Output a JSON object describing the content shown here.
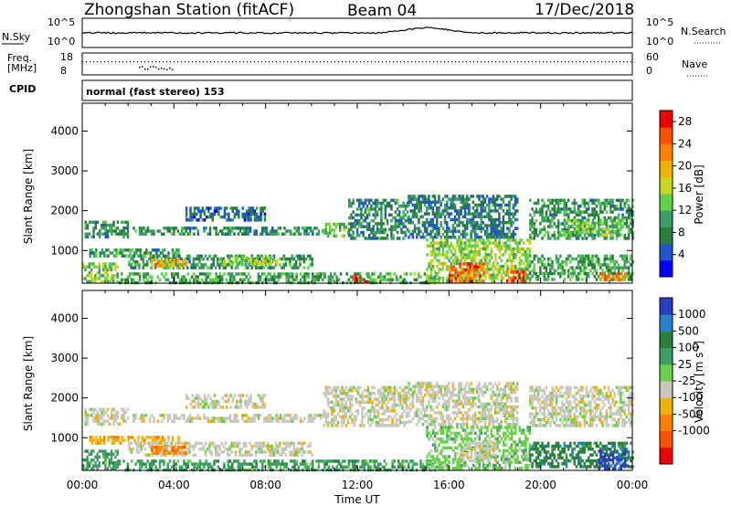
{
  "header": {
    "station": "Zhongshan Station (fitACF)",
    "beam": "Beam 04",
    "date": "17/Dec/2018"
  },
  "top_panels": {
    "nsky_label": "N.Sky",
    "nsearch_label": "N.Search",
    "nsky_ticks": [
      "10^5",
      "10^0"
    ],
    "nsearch_ticks": [
      "10^5",
      "10^0"
    ],
    "freq_label_1": "Freq.",
    "freq_label_2": "[MHz]",
    "freq_ticks": [
      "18",
      "8"
    ],
    "nave_label": "Nave",
    "nave_ticks": [
      "60",
      "0"
    ],
    "cpid_label": "CPID",
    "mode_text": "normal (fast stereo) 153"
  },
  "chart_data": [
    {
      "type": "heatmap",
      "name": "power",
      "ylabel": "Slant Range [km]",
      "xlabel": "",
      "x_ticks": [
        "00:00",
        "04:00",
        "08:00",
        "12:00",
        "16:00",
        "20:00",
        "00:00"
      ],
      "y_ticks": [
        "1000",
        "2000",
        "3000",
        "4000"
      ],
      "xlim": [
        0,
        24
      ],
      "ylim": [
        180,
        4700
      ],
      "colorbar": {
        "label": "Power [dB]",
        "ticks": [
          "4",
          "8",
          "12",
          "16",
          "20",
          "24",
          "28"
        ],
        "range": [
          0,
          30
        ],
        "colors": [
          "#0000ff",
          "#2255cc",
          "#2a7f3a",
          "#3f9d66",
          "#5fd14a",
          "#c8d820",
          "#f0b400",
          "#ff8000",
          "#ff5000",
          "#ee0000"
        ]
      },
      "regions": [
        {
          "t0": 0.1,
          "t1": 2.0,
          "r0": 1350,
          "r1": 1750,
          "level": 8
        },
        {
          "t0": 2.2,
          "t1": 10.5,
          "r0": 1380,
          "r1": 1600,
          "level": 8
        },
        {
          "t0": 4.5,
          "t1": 8.0,
          "r0": 1800,
          "r1": 2100,
          "level": 6
        },
        {
          "t0": 10.5,
          "t1": 11.6,
          "r0": 1350,
          "r1": 1700,
          "level": 12
        },
        {
          "t0": 11.6,
          "t1": 14.2,
          "r0": 1300,
          "r1": 2300,
          "level": 8
        },
        {
          "t0": 14.2,
          "t1": 19.0,
          "r0": 1300,
          "r1": 2400,
          "level": 7
        },
        {
          "t0": 19.5,
          "t1": 24.0,
          "r0": 1300,
          "r1": 2300,
          "level": 9
        },
        {
          "t0": 21.0,
          "t1": 23.5,
          "r0": 1400,
          "r1": 1800,
          "level": 13
        },
        {
          "t0": 0.3,
          "t1": 4.2,
          "r0": 850,
          "r1": 1050,
          "level": 9
        },
        {
          "t0": 2.0,
          "t1": 10.0,
          "r0": 550,
          "r1": 900,
          "level": 9
        },
        {
          "t0": 3.0,
          "t1": 4.5,
          "r0": 600,
          "r1": 800,
          "level": 20
        },
        {
          "t0": 6.0,
          "t1": 8.5,
          "r0": 650,
          "r1": 850,
          "level": 15
        },
        {
          "t0": 0.0,
          "t1": 1.5,
          "r0": 250,
          "r1": 700,
          "level": 13
        },
        {
          "t0": 1.5,
          "t1": 12.0,
          "r0": 220,
          "r1": 450,
          "level": 10
        },
        {
          "t0": 11.8,
          "t1": 12.5,
          "r0": 220,
          "r1": 400,
          "level": 28
        },
        {
          "t0": 12.0,
          "t1": 15.5,
          "r0": 220,
          "r1": 450,
          "level": 11
        },
        {
          "t0": 15.0,
          "t1": 19.5,
          "r0": 220,
          "r1": 1300,
          "level": 14
        },
        {
          "t0": 16.0,
          "t1": 17.5,
          "r0": 220,
          "r1": 700,
          "level": 24
        },
        {
          "t0": 18.5,
          "t1": 19.3,
          "r0": 220,
          "r1": 500,
          "level": 26
        },
        {
          "t0": 19.5,
          "t1": 24.0,
          "r0": 250,
          "r1": 900,
          "level": 10
        },
        {
          "t0": 22.5,
          "t1": 23.8,
          "r0": 250,
          "r1": 450,
          "level": 22
        }
      ]
    },
    {
      "type": "heatmap",
      "name": "velocity",
      "ylabel": "Slant Range [km]",
      "xlabel": "Time UT",
      "x_ticks": [
        "00:00",
        "04:00",
        "08:00",
        "12:00",
        "16:00",
        "20:00",
        "00:00"
      ],
      "y_ticks": [
        "1000",
        "2000",
        "3000",
        "4000"
      ],
      "xlim": [
        0,
        24
      ],
      "ylim": [
        180,
        4700
      ],
      "colorbar": {
        "label": "Velocity [m s",
        "label_sup": "-1",
        "label_end": "]",
        "ticks": [
          "1000",
          "500",
          "100",
          "25",
          "-25",
          "-100",
          "-500",
          "-1000"
        ],
        "colors": [
          "#2a3fbf",
          "#2a7fd0",
          "#2a7f3a",
          "#3f9d66",
          "#6ad04a",
          "#c8c8c0",
          "#f0b400",
          "#ff8000",
          "#ff5000",
          "#ee0000"
        ]
      },
      "regions": [
        {
          "t0": 0.1,
          "t1": 2.0,
          "r0": 1350,
          "r1": 1750,
          "level": 5
        },
        {
          "t0": 2.2,
          "t1": 10.5,
          "r0": 1380,
          "r1": 1600,
          "level": 5
        },
        {
          "t0": 4.5,
          "t1": 8.0,
          "r0": 1800,
          "r1": 2100,
          "level": 5
        },
        {
          "t0": 10.5,
          "t1": 14.2,
          "r0": 1300,
          "r1": 2300,
          "level": 5
        },
        {
          "t0": 14.2,
          "t1": 19.0,
          "r0": 1300,
          "r1": 2400,
          "level": 5
        },
        {
          "t0": 19.5,
          "t1": 24.0,
          "r0": 1300,
          "r1": 2300,
          "level": 5
        },
        {
          "t0": 0.3,
          "t1": 4.2,
          "r0": 850,
          "r1": 1050,
          "level": 6
        },
        {
          "t0": 2.0,
          "t1": 10.0,
          "r0": 550,
          "r1": 900,
          "level": 5
        },
        {
          "t0": 3.0,
          "t1": 4.5,
          "r0": 600,
          "r1": 800,
          "level": 7
        },
        {
          "t0": 0.0,
          "t1": 1.5,
          "r0": 250,
          "r1": 700,
          "level": 3
        },
        {
          "t0": 1.5,
          "t1": 12.0,
          "r0": 220,
          "r1": 450,
          "level": 3
        },
        {
          "t0": 12.0,
          "t1": 15.5,
          "r0": 220,
          "r1": 450,
          "level": 3
        },
        {
          "t0": 15.0,
          "t1": 19.5,
          "r0": 220,
          "r1": 1300,
          "level": 4
        },
        {
          "t0": 16.5,
          "t1": 18.0,
          "r0": 400,
          "r1": 900,
          "level": 5
        },
        {
          "t0": 19.5,
          "t1": 24.0,
          "r0": 250,
          "r1": 900,
          "level": 2
        },
        {
          "t0": 22.5,
          "t1": 23.8,
          "r0": 250,
          "r1": 700,
          "level": 0
        }
      ]
    }
  ]
}
